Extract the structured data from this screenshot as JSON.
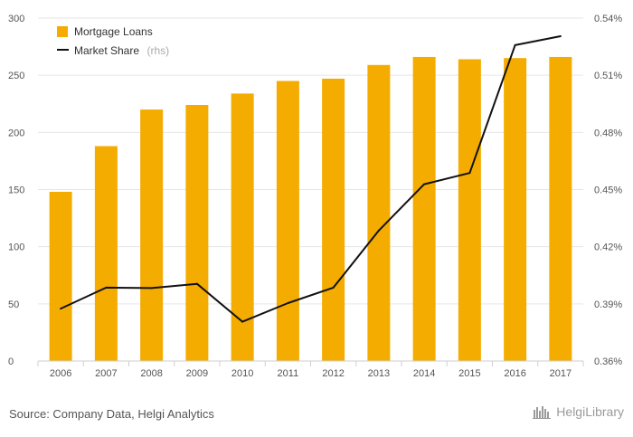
{
  "chart_data": {
    "type": "bar+line",
    "categories": [
      "2006",
      "2007",
      "2008",
      "2009",
      "2010",
      "2011",
      "2012",
      "2013",
      "2014",
      "2015",
      "2016",
      "2017"
    ],
    "series": [
      {
        "name": "Mortgage Loans",
        "type": "bar",
        "axis": "left",
        "color": "#f5ac00",
        "values": [
          148,
          188,
          220,
          224,
          234,
          245,
          247,
          259,
          266,
          264,
          265,
          266
        ]
      },
      {
        "name": "Market Share",
        "name_suffix": "(rhs)",
        "type": "line",
        "axis": "right",
        "color": "#111111",
        "values": [
          0.3875,
          0.3985,
          0.3983,
          0.4005,
          0.3806,
          0.3904,
          0.3985,
          0.4285,
          0.4528,
          0.4587,
          0.5258,
          0.5305
        ]
      }
    ],
    "y_left": {
      "min": 0,
      "max": 300,
      "ticks": [
        "0",
        "50",
        "100",
        "150",
        "200",
        "250",
        "300"
      ]
    },
    "y_right": {
      "min": 0.36,
      "max": 0.54,
      "ticks": [
        "0.36%",
        "0.39%",
        "0.42%",
        "0.45%",
        "0.48%",
        "0.51%",
        "0.54%"
      ]
    },
    "grid": true,
    "legend_position": "top-left"
  },
  "legend": {
    "bar_label": "Mortgage Loans",
    "line_label": "Market Share",
    "line_suffix": "(rhs)"
  },
  "footer": {
    "source": "Source: Company Data, Helgi Analytics",
    "brand": "HelgiLibrary"
  }
}
